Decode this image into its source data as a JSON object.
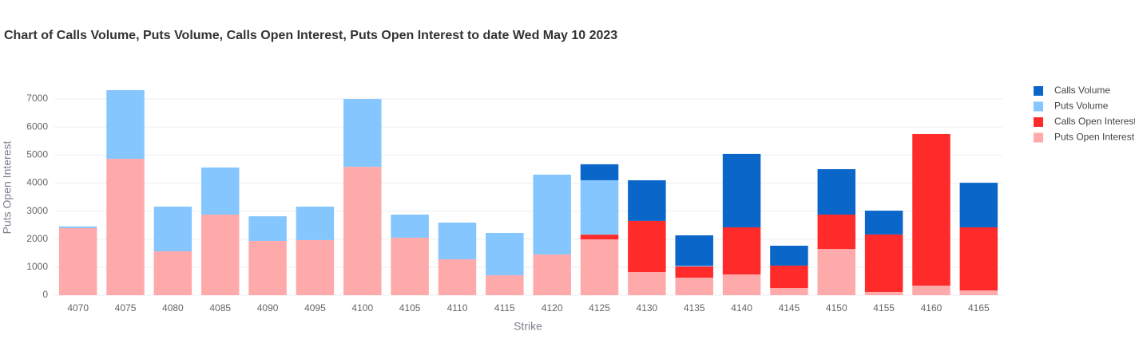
{
  "chart_data": {
    "type": "bar",
    "stacked": true,
    "title": "Chart of Calls Volume, Puts Volume, Calls Open Interest, Puts Open Interest to date Wed May 10 2023",
    "x_label": "Strike",
    "y_label": "Puts Open Interest",
    "categories": [
      "4070",
      "4075",
      "4080",
      "4085",
      "4090",
      "4095",
      "4100",
      "4105",
      "4110",
      "4115",
      "4120",
      "4125",
      "4130",
      "4135",
      "4140",
      "4145",
      "4150",
      "4155",
      "4160",
      "4165"
    ],
    "series": [
      {
        "name": "Calls Volume",
        "color": "#0a66c8",
        "values": [
          0,
          0,
          0,
          0,
          0,
          0,
          0,
          0,
          0,
          0,
          0,
          570,
          1450,
          1085,
          2620,
          710,
          1620,
          850,
          0,
          1590
        ]
      },
      {
        "name": "Puts Volume",
        "color": "#85c6ff",
        "values": [
          60,
          2450,
          1595,
          1680,
          880,
          1195,
          2420,
          825,
          1310,
          1510,
          2850,
          1940,
          0,
          25,
          0,
          0,
          0,
          0,
          0,
          0
        ]
      },
      {
        "name": "Calls Open Interest",
        "color": "#ff2a2a",
        "values": [
          0,
          0,
          0,
          0,
          0,
          0,
          0,
          0,
          0,
          0,
          0,
          170,
          1825,
          400,
          1680,
          800,
          1225,
          2050,
          5410,
          2250
        ]
      },
      {
        "name": "Puts Open Interest",
        "color": "#ffaaaa",
        "values": [
          2390,
          4865,
          1565,
          2875,
          1935,
          1965,
          4580,
          2050,
          1280,
          710,
          1450,
          1990,
          825,
          625,
          740,
          255,
          1650,
          115,
          340,
          170
        ]
      }
    ],
    "ylim": [
      0,
      7400
    ],
    "yticks": [
      0,
      1000,
      2000,
      3000,
      4000,
      5000,
      6000,
      7000
    ],
    "grid": true,
    "legend": "right"
  }
}
